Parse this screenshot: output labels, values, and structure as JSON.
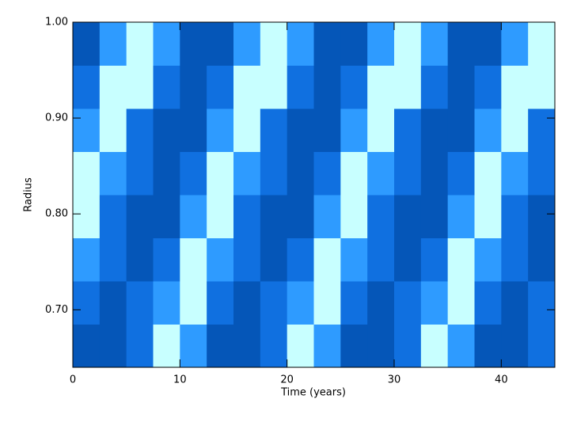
{
  "chart_data": {
    "type": "contour",
    "xlabel": "Time (years)",
    "ylabel": "Radius",
    "xlim": [
      0,
      45
    ],
    "ylim": [
      0.64,
      1.0
    ],
    "xticks": [
      0,
      10,
      20,
      30,
      40
    ],
    "yticks": [
      {
        "value": 0.7,
        "label": "0.70"
      },
      {
        "value": 0.8,
        "label": "0.80"
      },
      {
        "value": 0.9,
        "label": "0.90"
      },
      {
        "value": 1.0,
        "label": "1.00"
      }
    ],
    "x": [
      1.25,
      3.75,
      6.25,
      8.75,
      11.25,
      13.75,
      16.25,
      18.75,
      21.25,
      23.75,
      26.25,
      28.75,
      31.25,
      33.75,
      36.25,
      38.75,
      41.25,
      43.75
    ],
    "y": [
      0.6625,
      0.7075,
      0.7525,
      0.7975,
      0.8425,
      0.8875,
      0.9325,
      0.9775
    ],
    "z": [
      [
        3,
        3,
        2,
        0,
        1,
        3,
        3,
        2,
        0,
        1,
        3,
        3,
        2,
        0,
        1,
        3,
        3,
        2
      ],
      [
        2,
        3,
        2,
        1,
        0,
        2,
        3,
        2,
        1,
        0,
        2,
        3,
        2,
        1,
        0,
        2,
        3,
        2
      ],
      [
        1,
        2,
        3,
        2,
        0,
        1,
        2,
        3,
        2,
        0,
        1,
        2,
        3,
        2,
        0,
        1,
        2,
        3
      ],
      [
        0,
        2,
        3,
        3,
        1,
        0,
        2,
        3,
        3,
        1,
        0,
        2,
        3,
        3,
        1,
        0,
        2,
        3
      ],
      [
        0,
        1,
        2,
        3,
        2,
        0,
        1,
        2,
        3,
        2,
        0,
        1,
        2,
        3,
        2,
        0,
        1,
        2
      ],
      [
        1,
        0,
        2,
        3,
        3,
        1,
        0,
        2,
        3,
        3,
        1,
        0,
        2,
        3,
        3,
        1,
        0,
        2
      ],
      [
        2,
        0,
        0,
        2,
        3,
        2,
        0,
        0,
        2,
        3,
        2,
        0,
        0,
        2,
        3,
        2,
        0,
        0
      ],
      [
        3,
        1,
        0,
        1,
        3,
        3,
        1,
        0,
        1,
        3,
        3,
        1,
        0,
        1,
        3,
        3,
        1,
        0
      ]
    ],
    "colors": [
      "#c8ffff",
      "#2e9bff",
      "#1070e0",
      "#0556b8"
    ]
  }
}
